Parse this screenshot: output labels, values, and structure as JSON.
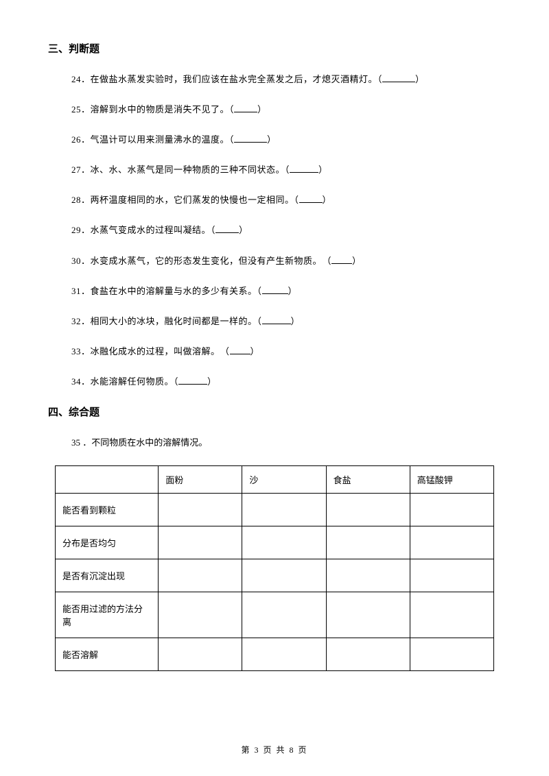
{
  "sections": {
    "s3": {
      "title": "三、判断题",
      "questions": [
        {
          "num": "24",
          "text": "．在做盐水蒸发实验时，我们应该在盐水完全蒸发之后，才熄灭酒精灯。",
          "blank_width": 48
        },
        {
          "num": "25",
          "text": "．溶解到水中的物质是消失不见了。",
          "blank_width": 34
        },
        {
          "num": "26",
          "text": "．气温计可以用来测量沸水的温度。",
          "blank_width": 48
        },
        {
          "num": "27",
          "text": "．冰、水、水蒸气是同一种物质的三种不同状态。",
          "blank_width": 42
        },
        {
          "num": "28",
          "text": "．两杯温度相同的水，它们蒸发的快慢也一定相同。",
          "blank_width": 34
        },
        {
          "num": "29",
          "text": "．水蒸气变成水的过程叫凝结。",
          "blank_width": 34
        },
        {
          "num": "30",
          "text": "．水变成水蒸气，它的形态发生变化，但没有产生新物质。　",
          "blank_width": 30
        },
        {
          "num": "31",
          "text": "．食盐在水中的溶解量与水的多少有关系。",
          "blank_width": 38
        },
        {
          "num": "32",
          "text": "．相同大小的冰块，融化时间都是一样的。",
          "blank_width": 42
        },
        {
          "num": "33",
          "text": "．冰融化成水的过程，叫做溶解。　",
          "blank_width": 30
        },
        {
          "num": "34",
          "text": "．水能溶解任何物质。",
          "blank_width": 42
        }
      ]
    },
    "s4": {
      "title": "四、综合题",
      "question": {
        "num": "35",
        "text": "．不同物质在水中的溶解情况。"
      },
      "table": {
        "columns": [
          "",
          "面粉",
          "沙",
          "食盐",
          "高锰酸钾"
        ],
        "rows": [
          "能否看到颗粒",
          "分布是否均匀",
          "是否有沉淀出现",
          "能否用过滤的方法分离",
          "能否溶解"
        ]
      }
    }
  },
  "footer": {
    "prefix": "第",
    "page_num": "3",
    "middle": "页 共",
    "total": "8",
    "suffix": "页"
  },
  "colors": {
    "background": "#ffffff",
    "text": "#000000",
    "border": "#000000"
  },
  "fonts": {
    "body_size": 13,
    "title_size": 15,
    "footer_size": 12,
    "family": "SimSun"
  }
}
